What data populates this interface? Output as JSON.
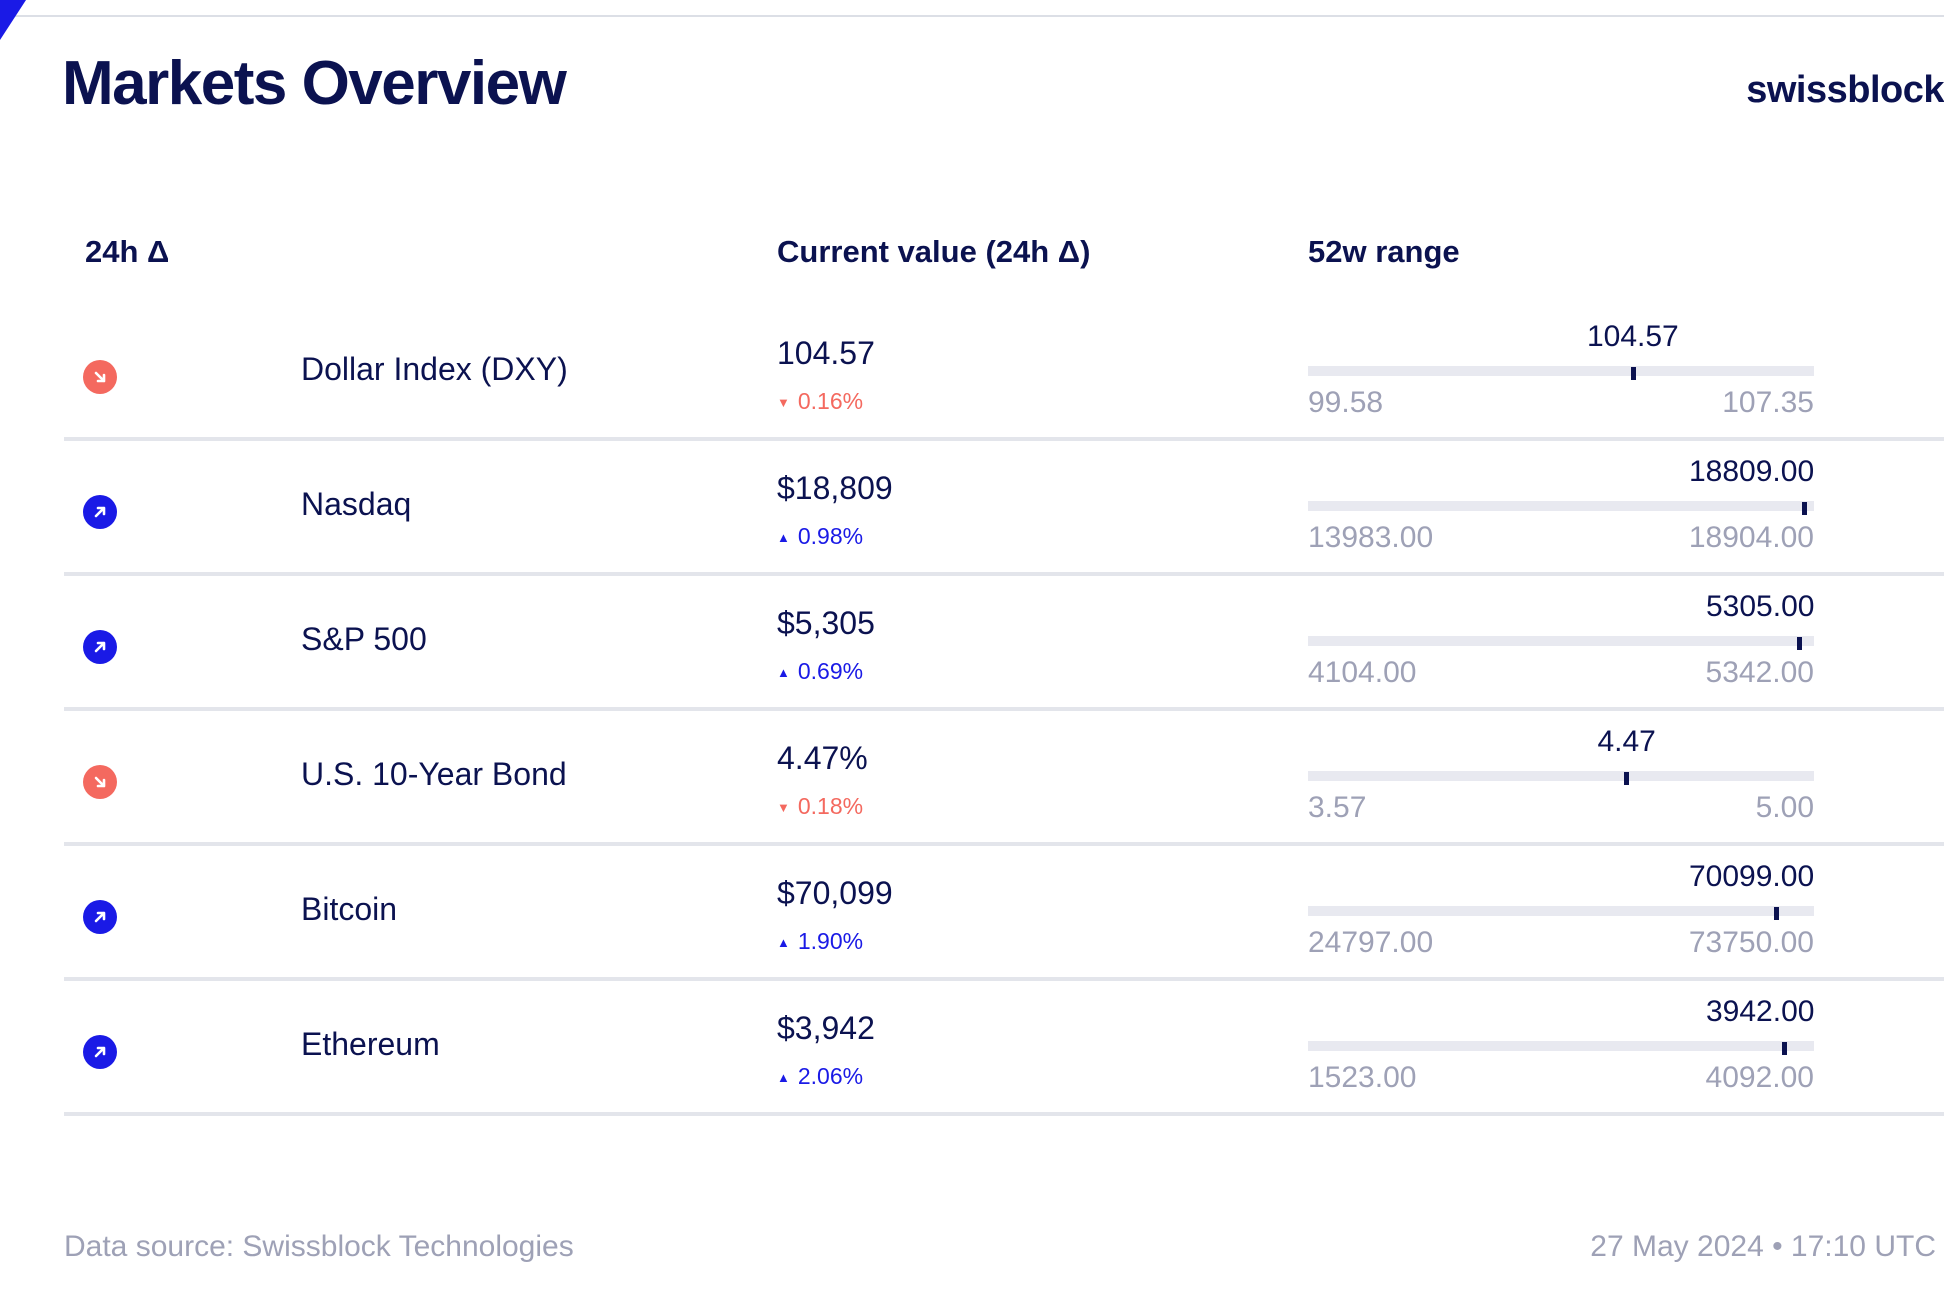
{
  "header": {
    "title": "Markets Overview",
    "brand": "swissblock"
  },
  "columns": {
    "delta": "24h Δ",
    "current_value": "Current value (24h Δ)",
    "range": "52w range"
  },
  "colors": {
    "up": "#1a1ae6",
    "down": "#f4695f",
    "text": "#0b1250",
    "muted": "#9ea1b6"
  },
  "rows": [
    {
      "name": "Dollar Index (DXY)",
      "value": "104.57",
      "change": "0.16%",
      "direction": "down",
      "arrow_icon": "arrow-down-right-icon",
      "range_current": "104.57",
      "range_low": "99.58",
      "range_high": "107.35",
      "current": 104.57,
      "low": 99.58,
      "high": 107.35
    },
    {
      "name": "Nasdaq",
      "value": "$18,809",
      "change": "0.98%",
      "direction": "up",
      "arrow_icon": "arrow-up-right-icon",
      "range_current": "18809.00",
      "range_low": "13983.00",
      "range_high": "18904.00",
      "current": 18809.0,
      "low": 13983.0,
      "high": 18904.0
    },
    {
      "name": "S&P 500",
      "value": "$5,305",
      "change": "0.69%",
      "direction": "up",
      "arrow_icon": "arrow-up-right-icon",
      "range_current": "5305.00",
      "range_low": "4104.00",
      "range_high": "5342.00",
      "current": 5305.0,
      "low": 4104.0,
      "high": 5342.0
    },
    {
      "name": "U.S. 10-Year Bond",
      "value": "4.47%",
      "change": "0.18%",
      "direction": "down",
      "arrow_icon": "arrow-down-right-icon",
      "range_current": "4.47",
      "range_low": "3.57",
      "range_high": "5.00",
      "current": 4.47,
      "low": 3.57,
      "high": 5.0
    },
    {
      "name": "Bitcoin",
      "value": "$70,099",
      "change": "1.90%",
      "direction": "up",
      "arrow_icon": "arrow-up-right-icon",
      "range_current": "70099.00",
      "range_low": "24797.00",
      "range_high": "73750.00",
      "current": 70099.0,
      "low": 24797.0,
      "high": 73750.0
    },
    {
      "name": "Ethereum",
      "value": "$3,942",
      "change": "2.06%",
      "direction": "up",
      "arrow_icon": "arrow-up-right-icon",
      "range_current": "3942.00",
      "range_low": "1523.00",
      "range_high": "4092.00",
      "current": 3942.0,
      "low": 1523.0,
      "high": 4092.0
    }
  ],
  "footer": {
    "source": "Data source: Swissblock Technologies",
    "timestamp": "27 May 2024 • 17:10 UTC"
  }
}
